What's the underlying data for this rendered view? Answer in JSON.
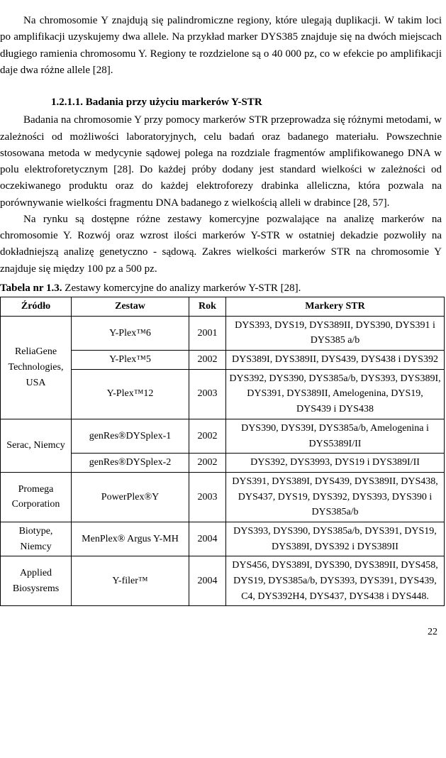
{
  "paragraphs": {
    "p1": "Na chromosomie Y znajdują się palindromiczne regiony, które ulegają duplikacji. W takim loci po amplifikacji uzyskujemy dwa allele. Na przykład marker DYS385 znajduje się na dwóch miejscach długiego ramienia chromosomu Y. Regiony te rozdzielone są o 40 000 pz, co w efekcie po amplifikacji daje dwa różne allele [28].",
    "heading": "1.2.1.1. Badania przy użyciu markerów Y-STR",
    "p2": "Badania na chromosomie Y przy pomocy markerów STR przeprowadza się różnymi metodami, w zależności od możliwości laboratoryjnych, celu badań oraz badanego materiału. Powszechnie stosowana metoda w medycynie sądowej polega na rozdziale fragmentów amplifikowanego DNA w polu elektroforetycznym [28]. Do każdej próby dodany jest standard wielkości w zależności od oczekiwanego produktu oraz do każdej elektroforezy drabinka alleliczna, która pozwala na porównywanie wielkości fragmentu DNA badanego z wielkością alleli w drabince [28, 57].",
    "p3": "Na rynku są dostępne różne zestawy komercyjne pozwalające na analizę markerów na chromosomie Y. Rozwój oraz wzrost ilości markerów Y-STR w ostatniej dekadzie pozwoliły na dokładniejszą analizę genetyczno - sądową. Zakres wielkości markerów STR na chromosomie Y znajduje się między 100 pz a 500 pz.",
    "caption_bold": "Tabela nr 1.3.",
    "caption_rest": " Zestawy komercyjne do analizy markerów Y-STR [28]."
  },
  "table": {
    "headers": [
      "Źródło",
      "Zestaw",
      "Rok",
      "Markery STR"
    ],
    "groups": [
      {
        "source": "ReliaGene Technologies, USA",
        "rows": [
          {
            "kit": "Y-Plex™6",
            "year": "2001",
            "markers": "DYS393, DYS19, DYS389II, DYS390, DYS391 i DYS385 a/b"
          },
          {
            "kit": "Y-Plex™5",
            "year": "2002",
            "markers": "DYS389I, DYS389II, DYS439, DYS438 i DYS392"
          },
          {
            "kit": "Y-Plex™12",
            "year": "2003",
            "markers": "DYS392, DYS390, DYS385a/b, DYS393, DYS389I, DYS391, DYS389II, Amelogenina, DYS19, DYS439 i DYS438"
          }
        ]
      },
      {
        "source": "Serac, Niemcy",
        "rows": [
          {
            "kit": "genRes®DYSplex-1",
            "year": "2002",
            "markers": "DYS390, DYS39I, DYS385a/b, Amelogenina i DYS5389I/II"
          },
          {
            "kit": "genRes®DYSplex-2",
            "year": "2002",
            "markers": "DYS392, DYS3993, DYS19 i DYS389I/II"
          }
        ]
      },
      {
        "source": "Promega Corporation",
        "rows": [
          {
            "kit": "PowerPlex®Y",
            "year": "2003",
            "markers": "DYS391, DYS389I, DYS439, DYS389II, DYS438, DYS437, DYS19, DYS392, DYS393, DYS390 i DYS385a/b"
          }
        ]
      },
      {
        "source": "Biotype, Niemcy",
        "rows": [
          {
            "kit": "MenPlex® Argus Y-MH",
            "year": "2004",
            "markers": "DYS393, DYS390, DYS385a/b, DYS391, DYS19, DYS389I, DYS392 i DYS389II"
          }
        ]
      },
      {
        "source": "Applied Biosysrems",
        "rows": [
          {
            "kit": "Y-filer™",
            "year": "2004",
            "markers": "DYS456, DYS389I, DYS390, DYS389II, DYS458, DYS19, DYS385a/b, DYS393, DYS391, DYS439, C4, DYS392H4, DYS437, DYS438 i DYS448."
          }
        ]
      }
    ]
  },
  "page_number": "22"
}
